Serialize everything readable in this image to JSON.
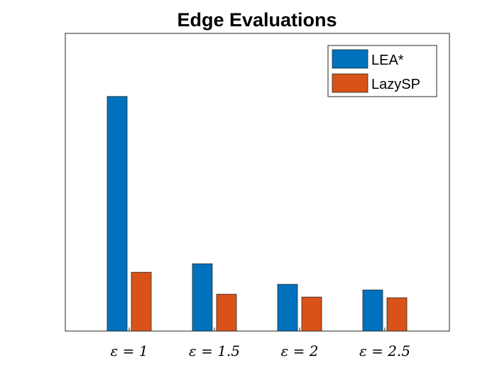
{
  "chart_data": {
    "type": "bar",
    "title": "Edge Evaluations",
    "xlabel": "",
    "ylabel": "",
    "categories": [
      "ε = 1",
      "ε = 1.5",
      "ε = 2",
      "ε = 2.5"
    ],
    "series": [
      {
        "name": "LEA*",
        "color": "#0072BD",
        "values": [
          331,
          95,
          66,
          58
        ]
      },
      {
        "name": "LazySP",
        "color": "#D95319",
        "values": [
          83,
          52,
          48,
          47
        ]
      }
    ],
    "ylim": [
      0,
      420
    ],
    "yticks_visible": false,
    "grid": false,
    "legend_position": "top-right"
  }
}
